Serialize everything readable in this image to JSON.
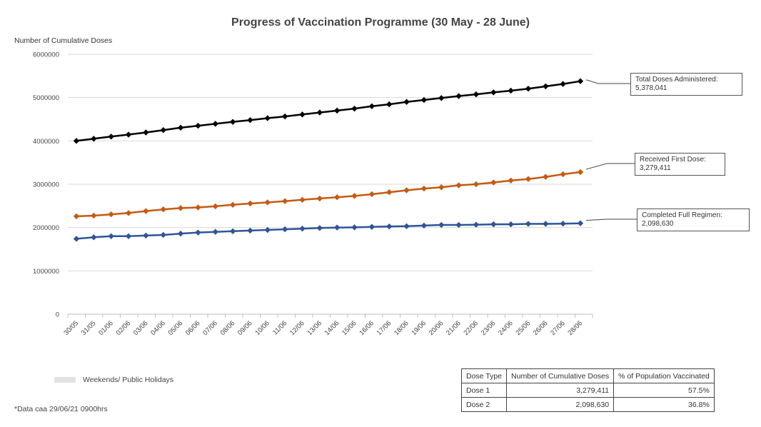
{
  "chart_data": {
    "type": "line",
    "title": "Progress of Vaccination Programme (30 May - 28 June)",
    "ylabel": "Number of Cumulative Doses",
    "xlabel": "",
    "ylim": [
      0,
      6000000
    ],
    "yticks": [
      "0",
      "1000000",
      "2000000",
      "3000000",
      "4000000",
      "5000000",
      "6000000"
    ],
    "categories": [
      "30/05",
      "31/05",
      "01/06",
      "02/06",
      "03/06",
      "04/06",
      "05/06",
      "06/06",
      "07/06",
      "08/06",
      "09/06",
      "10/06",
      "11/06",
      "12/06",
      "13/06",
      "14/06",
      "15/06",
      "16/06",
      "17/06",
      "18/06",
      "19/06",
      "20/06",
      "21/06",
      "22/06",
      "23/06",
      "24/06",
      "25/06",
      "26/06",
      "27/06",
      "28/06"
    ],
    "series": [
      {
        "name": "Total Doses Administered",
        "color": "#000000",
        "callout_label": "Total Doses Administered:",
        "callout_value": "5,378,041",
        "values": [
          4000000,
          4050000,
          4100000,
          4145000,
          4195000,
          4250000,
          4305000,
          4350000,
          4395000,
          4440000,
          4480000,
          4525000,
          4565000,
          4610000,
          4655000,
          4700000,
          4745000,
          4800000,
          4845000,
          4900000,
          4945000,
          4990000,
          5035000,
          5075000,
          5120000,
          5160000,
          5205000,
          5260000,
          5315000,
          5378041
        ]
      },
      {
        "name": "Received First Dose",
        "color": "#c55a11",
        "callout_label": "Received First Dose:",
        "callout_value": "3,279,411",
        "values": [
          2260000,
          2275000,
          2305000,
          2335000,
          2380000,
          2420000,
          2450000,
          2465000,
          2490000,
          2525000,
          2555000,
          2580000,
          2610000,
          2640000,
          2670000,
          2700000,
          2730000,
          2770000,
          2815000,
          2860000,
          2900000,
          2930000,
          2975000,
          3000000,
          3040000,
          3085000,
          3120000,
          3170000,
          3230000,
          3279411
        ]
      },
      {
        "name": "Completed Full Regimen",
        "color": "#2f5597",
        "callout_label": "Completed Full Regimen:",
        "callout_value": "2,098,630",
        "values": [
          1740000,
          1775000,
          1800000,
          1800000,
          1815000,
          1830000,
          1860000,
          1885000,
          1900000,
          1915000,
          1930000,
          1945000,
          1960000,
          1975000,
          1990000,
          2000000,
          2005000,
          2015000,
          2025000,
          2030000,
          2045000,
          2060000,
          2060000,
          2065000,
          2075000,
          2075000,
          2085000,
          2085000,
          2090000,
          2098630
        ]
      }
    ],
    "legend": {
      "label": "Weekends/ Public Holidays",
      "color": "#e2e2e2",
      "position": "bottom-left"
    },
    "grid": true
  },
  "note": "*Data caa 29/06/21 0900hrs",
  "summary_table": {
    "headers": [
      "Dose Type",
      "Number of Cumulative Doses",
      "% of Population Vaccinated"
    ],
    "rows": [
      [
        "Dose 1",
        "3,279,411",
        "57.5%"
      ],
      [
        "Dose 2",
        "2,098,630",
        "36.8%"
      ]
    ]
  }
}
